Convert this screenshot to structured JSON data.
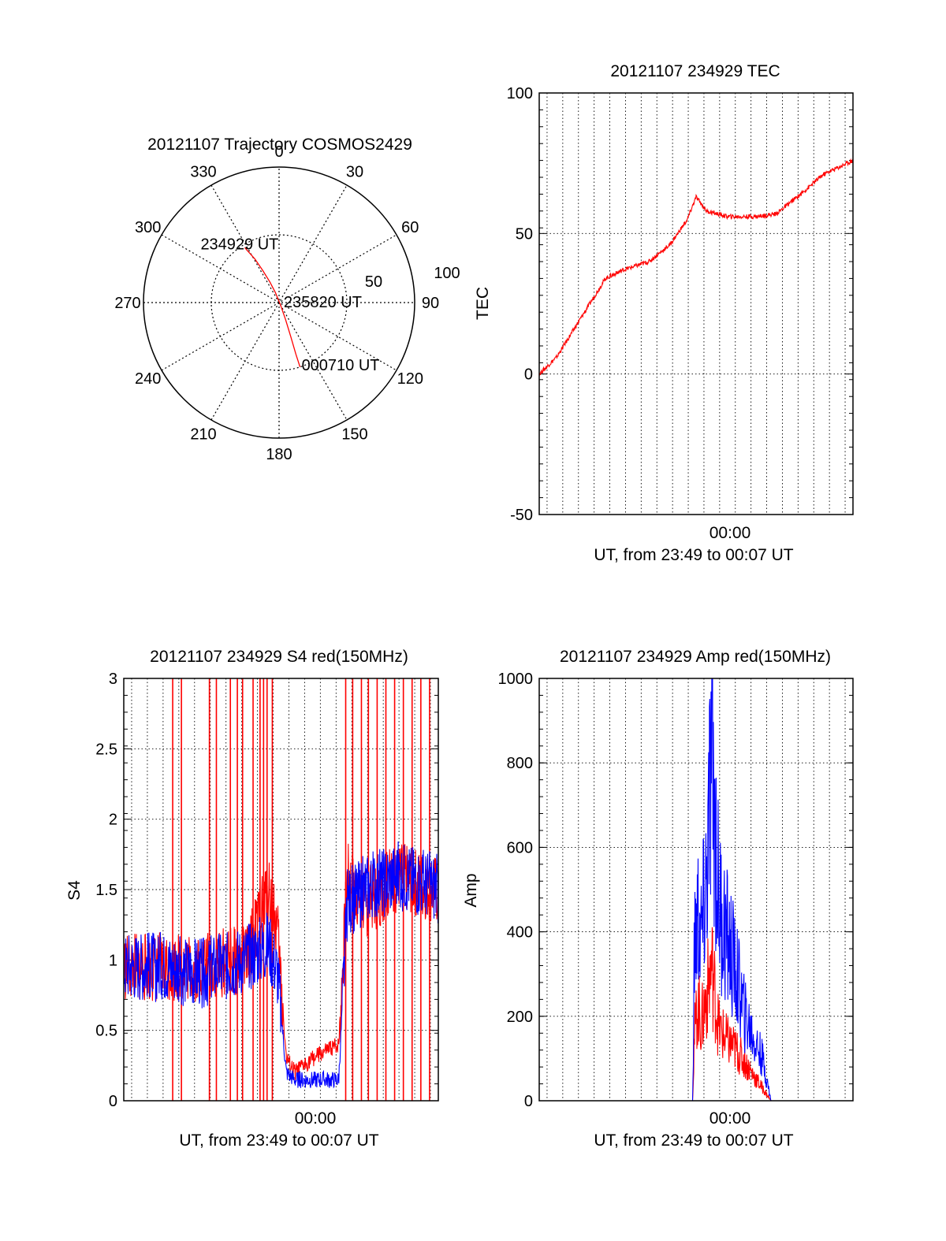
{
  "chart_data": [
    {
      "type": "polar",
      "title": "20121107 Trajectory COSMOS2429",
      "azimuth_labels": [
        "0",
        "30",
        "60",
        "90",
        "120",
        "150",
        "180",
        "210",
        "240",
        "270",
        "300",
        "330"
      ],
      "radial_labels": [
        "50",
        "100"
      ],
      "trajectory": [
        {
          "az": 328,
          "elev": 47
        },
        {
          "az": 331,
          "elev": 57
        },
        {
          "az": 333,
          "elev": 66
        },
        {
          "az": 336,
          "elev": 75
        },
        {
          "az": 340,
          "elev": 83
        },
        {
          "az": 150,
          "elev": 92
        },
        {
          "az": 159,
          "elev": 78
        },
        {
          "az": 161,
          "elev": 66
        },
        {
          "az": 162,
          "elev": 54
        },
        {
          "az": 162,
          "elev": 45
        }
      ],
      "points": [
        {
          "label": "234929 UT",
          "az": 328,
          "elev": 47
        },
        {
          "label": "235820 UT",
          "az": 0,
          "elev": 90
        },
        {
          "label": "000710 UT",
          "az": 162,
          "elev": 45
        }
      ]
    },
    {
      "type": "line",
      "title": "20121107 234929 TEC",
      "xlabel": "UT, from 23:49 to 00:07 UT",
      "ylabel": "TEC",
      "xtick_label": "00:00",
      "xlim": [
        -10.8,
        7.2
      ],
      "ylim": [
        -50,
        100
      ],
      "yticks": [
        "-50",
        "0",
        "50",
        "100"
      ],
      "series": [
        {
          "color": "#ff0000",
          "x": [
            -10.8,
            -9.8,
            -8.6,
            -7.0,
            -6.0,
            -4.5,
            -3.3,
            -2.3,
            -1.8,
            -1.2,
            0,
            1.7,
            2.8,
            4.2,
            5.5,
            7.2
          ],
          "y": [
            0,
            6,
            18,
            34,
            37,
            40,
            46,
            55,
            63,
            58,
            56,
            56,
            57,
            64,
            71,
            76
          ]
        }
      ]
    },
    {
      "type": "line",
      "title": "20121107 234929 S4 red(150MHz)",
      "xlabel": "UT, from 23:49 to 00:07 UT",
      "ylabel": "S4",
      "xtick_label": "00:00",
      "xlim": [
        -10.8,
        7.2
      ],
      "ylim": [
        0,
        3
      ],
      "yticks": [
        "0",
        "0.5",
        "1",
        "1.5",
        "2",
        "2.5",
        "3"
      ],
      "series": [
        {
          "color": "#ff0000",
          "x": [
            -10.8,
            -8.5,
            -6.5,
            -3.8,
            -2.5,
            -2.0,
            -1.5,
            -1.0,
            0,
            1.5,
            2.0,
            3.0,
            5.0,
            7.2
          ],
          "y": [
            0.95,
            0.95,
            0.95,
            1.0,
            1.5,
            1.2,
            0.3,
            0.2,
            0.3,
            0.4,
            1.6,
            1.4,
            1.6,
            1.5
          ]
        },
        {
          "color": "#0000ff",
          "x": [
            -10.8,
            -8.5,
            -6.5,
            -3.8,
            -2.5,
            -2.0,
            -1.5,
            -1.0,
            0,
            1.5,
            2.0,
            3.0,
            5.0,
            7.2
          ],
          "y": [
            0.95,
            0.95,
            0.9,
            1.0,
            1.1,
            0.9,
            0.2,
            0.15,
            0.15,
            0.15,
            1.4,
            1.5,
            1.6,
            1.5
          ]
        }
      ],
      "spikes": [
        -8.0,
        -7.5,
        -5.9,
        -5.5,
        -4.7,
        -4.3,
        -4.0,
        -3.4,
        -3.0,
        -2.8,
        -2.6,
        -2.3,
        1.9,
        2.3,
        2.8,
        3.2,
        3.7,
        4.2,
        4.7,
        5.2,
        5.7,
        6.2,
        6.7
      ]
    },
    {
      "type": "line",
      "title": "20121107 234929 Amp red(150MHz)",
      "xlabel": "UT, from 23:49 to 00:07 UT",
      "ylabel": "Amp",
      "xtick_label": "00:00",
      "xlim": [
        -10.8,
        7.2
      ],
      "ylim": [
        0,
        1000
      ],
      "yticks": [
        "0",
        "200",
        "400",
        "600",
        "800",
        "1000"
      ],
      "series": [
        {
          "color": "#ff0000",
          "x": [
            -10.8,
            -2.0,
            -1.9,
            -1.7,
            -1.5,
            -1.2,
            -0.9,
            -0.5,
            0,
            0.5,
            1.0,
            1.5,
            2.0,
            2.5,
            7.2
          ],
          "y": [
            0,
            0,
            150,
            230,
            180,
            250,
            320,
            170,
            140,
            120,
            90,
            60,
            30,
            0,
            0
          ]
        },
        {
          "color": "#0000ff",
          "x": [
            -10.8,
            -2.0,
            -1.9,
            -1.7,
            -1.5,
            -1.2,
            -0.9,
            -0.5,
            0,
            0.5,
            1.0,
            1.5,
            2.0,
            2.5,
            7.2
          ],
          "y": [
            0,
            0,
            350,
            430,
            380,
            520,
            810,
            470,
            380,
            300,
            200,
            150,
            100,
            0,
            0
          ]
        }
      ]
    }
  ]
}
